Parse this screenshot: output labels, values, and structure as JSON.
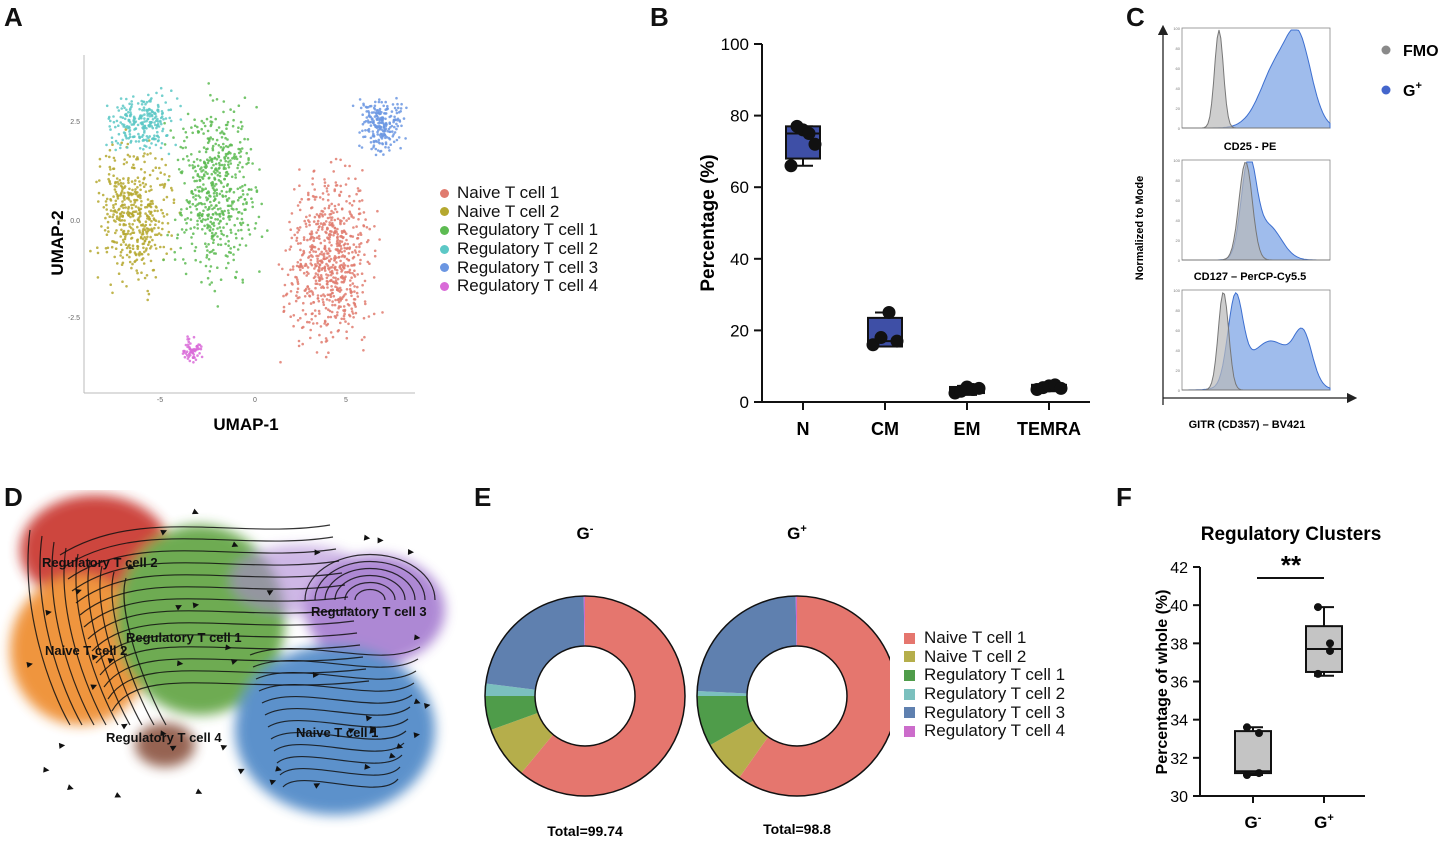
{
  "panels": {
    "A": "A",
    "B": "B",
    "C": "C",
    "D": "D",
    "E": "E",
    "F": "F"
  },
  "chart_data": [
    {
      "panel": "A",
      "type": "scatter",
      "title": "",
      "xlabel": "UMAP-1",
      "ylabel": "UMAP-2",
      "xticks": [
        "-5",
        "0",
        "5"
      ],
      "yticks": [
        "2.5",
        "0.0",
        "-2.5"
      ],
      "legend_position": "right",
      "series": [
        {
          "name": "Naive T cell 1",
          "color": "#E07B6F",
          "cx": 3.8,
          "cy": -1.0,
          "rx": 3.0,
          "ry": 3.0,
          "n": 700
        },
        {
          "name": "Naive T cell 2",
          "color": "#B5A82F",
          "cx": -6.2,
          "cy": 0.2,
          "rx": 2.6,
          "ry": 2.4,
          "n": 450
        },
        {
          "name": "Regulatory T cell 1",
          "color": "#5DBB52",
          "cx": -2.0,
          "cy": 0.8,
          "rx": 3.0,
          "ry": 3.2,
          "n": 550
        },
        {
          "name": "Regulatory T cell 2",
          "color": "#5CC8C6",
          "cx": -5.8,
          "cy": 2.6,
          "rx": 2.4,
          "ry": 1.0,
          "n": 250
        },
        {
          "name": "Regulatory T cell 3",
          "color": "#6B96E2",
          "cx": 6.5,
          "cy": 2.5,
          "rx": 1.6,
          "ry": 1.0,
          "n": 220
        },
        {
          "name": "Regulatory T cell 4",
          "color": "#D96BD8",
          "cx": -3.2,
          "cy": -3.3,
          "rx": 0.6,
          "ry": 0.5,
          "n": 60
        }
      ]
    },
    {
      "panel": "B",
      "type": "box",
      "xlabel": "",
      "ylabel": "Percentage (%)",
      "ylim": [
        0,
        100
      ],
      "yticks": [
        0,
        20,
        40,
        60,
        80,
        100
      ],
      "categories": [
        "N",
        "CM",
        "EM",
        "TEMRA"
      ],
      "boxes": [
        {
          "min": 66,
          "q1": 68,
          "median": 75,
          "q3": 77,
          "max": 77,
          "points": [
            66,
            77,
            76,
            75,
            72
          ]
        },
        {
          "min": 15.5,
          "q1": 15.5,
          "median": 17,
          "q3": 23.5,
          "max": 25,
          "points": [
            16,
            18,
            25,
            17
          ]
        },
        {
          "min": 2,
          "q1": 2.5,
          "median": 3.2,
          "q3": 4.2,
          "max": 4.5,
          "points": [
            2.5,
            3,
            4.2,
            3.5,
            3.8
          ]
        },
        {
          "min": 3,
          "q1": 3.3,
          "median": 4,
          "q3": 4.8,
          "max": 5,
          "points": [
            3.5,
            4,
            4.5,
            4.8,
            3.8
          ]
        }
      ],
      "color": "#3E4FA6"
    },
    {
      "panel": "C",
      "type": "histogram",
      "ylabel": "Normalized to Mode",
      "xlabel": "GITR (CD357) – BV421",
      "legend": [
        {
          "name": "FMO",
          "color": "#8a8a8a"
        },
        {
          "name": "G",
          "sup": "+",
          "color": "#4466cc"
        }
      ],
      "subpanels": [
        {
          "label": "CD25 - PE",
          "yticks": [
            "100",
            "80",
            "60",
            "40",
            "20",
            "0"
          ]
        },
        {
          "label": "CD127 – PerCP-Cy5.5",
          "yticks": [
            "100",
            "80",
            "60",
            "40",
            "20",
            "0"
          ]
        },
        {
          "label": "",
          "yticks": [
            "100",
            "80",
            "60",
            "40",
            "20",
            "0"
          ]
        }
      ]
    },
    {
      "panel": "D",
      "type": "scatter",
      "title": "",
      "cluster_labels": [
        {
          "name": "Regulatory T cell 2",
          "color": "#C8302C"
        },
        {
          "name": "Naive T cell 2",
          "color": "#EE8A2C"
        },
        {
          "name": "Regulatory T cell 1",
          "color": "#5FA33F"
        },
        {
          "name": "Regulatory T cell 3",
          "color": "#A57BD0"
        },
        {
          "name": "Regulatory T cell 4",
          "color": "#8B5240"
        },
        {
          "name": "Naive T cell 1",
          "color": "#4C86C6"
        }
      ]
    },
    {
      "panel": "E",
      "type": "pie",
      "categories": [
        "Naive T cell 1",
        "Naive T cell 2",
        "Regulatory T cell 1",
        "Regulatory T cell 2",
        "Regulatory T cell 3",
        "Regulatory T cell 4"
      ],
      "colors": [
        "#E5766E",
        "#B5AE4B",
        "#4F9C4A",
        "#7BC0BE",
        "#5F80AF",
        "#CC6CCB"
      ],
      "series": [
        {
          "name": "G",
          "sup": "-",
          "values": [
            61.0,
            8.5,
            5.5,
            2.0,
            22.8,
            0.2
          ],
          "total": "Total=99.74"
        },
        {
          "name": "G",
          "sup": "+",
          "values": [
            59.8,
            7.0,
            8.2,
            0.8,
            24.0,
            0.2
          ],
          "total": "Total=98.8"
        }
      ]
    },
    {
      "panel": "F",
      "type": "box",
      "title": "Regulatory Clusters",
      "ylabel": "Percentage of whole (%)",
      "ylim": [
        30,
        42
      ],
      "yticks": [
        30,
        32,
        34,
        36,
        38,
        40,
        42
      ],
      "categories": [
        {
          "name": "G",
          "sup": "-"
        },
        {
          "name": "G",
          "sup": "+"
        }
      ],
      "boxes": [
        {
          "min": 31.1,
          "q1": 31.2,
          "median": 31.3,
          "q3": 33.4,
          "max": 33.6,
          "points": [
            33.6,
            33.3,
            31.1,
            31.2
          ]
        },
        {
          "min": 36.3,
          "q1": 36.5,
          "median": 37.7,
          "q3": 38.9,
          "max": 39.9,
          "points": [
            39.9,
            38.0,
            36.4,
            37.6
          ]
        }
      ],
      "significance": "**",
      "color": "#c4c4c4"
    }
  ]
}
